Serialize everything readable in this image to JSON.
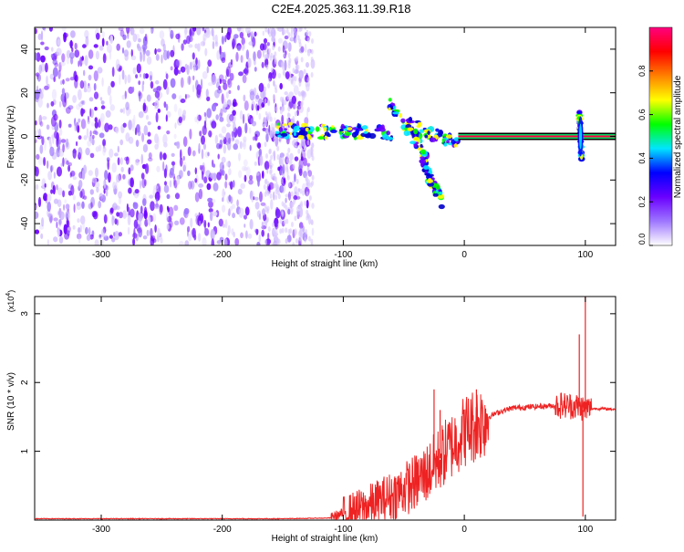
{
  "title": "C2E4.2025.363.11.39.R18",
  "chart_data": [
    {
      "type": "heatmap",
      "xlabel": "Height of straight line (km)",
      "ylabel": "Frequency (Hz)",
      "xlim": [
        -355,
        125
      ],
      "ylim": [
        -50,
        50
      ],
      "xticks": [
        -300,
        -200,
        -100,
        0,
        100
      ],
      "yticks": [
        -40,
        -20,
        0,
        20,
        40
      ],
      "colorbar": {
        "label": "Normalized spectral amplitude",
        "range": [
          0,
          1
        ],
        "ticks": [
          "0.0",
          "0.2",
          "0.4",
          "0.6",
          "0.8"
        ],
        "tick_values": [
          0,
          0.2,
          0.4,
          0.6,
          0.8
        ],
        "colors": [
          "#ffffff",
          "#9e76ff",
          "#6a00ff",
          "#0000ff",
          "#00e5ff",
          "#00ff00",
          "#ffff00",
          "#ff8000",
          "#ff0000",
          "#ff0080"
        ]
      },
      "regions": {
        "noise_x": [
          -355,
          -125
        ],
        "trace_x": [
          -155,
          125
        ],
        "trace_y": 0
      },
      "features": [
        {
          "x": [
            -155,
            -110
          ],
          "y": [
            3,
            2
          ]
        },
        {
          "x": [
            -110,
            -60
          ],
          "y": [
            3,
            1
          ]
        },
        {
          "x": [
            -62,
            -30
          ],
          "y": [
            15,
            -10
          ]
        },
        {
          "x": [
            -35,
            -18
          ],
          "y": [
            -12,
            -30
          ]
        },
        {
          "x": [
            -50,
            -5
          ],
          "y": [
            6,
            -3
          ]
        },
        {
          "x": [
            -5,
            125
          ],
          "y": [
            0,
            0
          ]
        },
        {
          "x": [
            95,
            97
          ],
          "y": [
            10,
            -10
          ]
        }
      ]
    },
    {
      "type": "line",
      "xlabel": "Height of straight line (km)",
      "ylabel": "SNR (10 * v/v)",
      "scale_label": "(x10",
      "scale_exp": "4",
      "scale_close": ")",
      "xlim": [
        -355,
        125
      ],
      "ylim": [
        0,
        3.25
      ],
      "xticks": [
        -300,
        -200,
        -100,
        0,
        100
      ],
      "yticks": [
        1,
        2,
        3
      ],
      "color": "#ee2222",
      "points": [
        [
          -355,
          0.02
        ],
        [
          -300,
          0.02
        ],
        [
          -250,
          0.02
        ],
        [
          -200,
          0.02
        ],
        [
          -150,
          0.02
        ],
        [
          -110,
          0.03
        ],
        [
          -100,
          0.1
        ],
        [
          -90,
          0.15
        ],
        [
          -80,
          0.2
        ],
        [
          -70,
          0.28
        ],
        [
          -60,
          0.35
        ],
        [
          -50,
          0.45
        ],
        [
          -40,
          0.55
        ],
        [
          -30,
          0.7
        ],
        [
          -25,
          0.8
        ],
        [
          -20,
          0.9
        ],
        [
          -15,
          1.0
        ],
        [
          -10,
          1.1
        ],
        [
          -5,
          1.2
        ],
        [
          0,
          1.3
        ],
        [
          5,
          1.35
        ],
        [
          10,
          1.4
        ],
        [
          20,
          1.5
        ],
        [
          30,
          1.58
        ],
        [
          40,
          1.63
        ],
        [
          50,
          1.64
        ],
        [
          60,
          1.65
        ],
        [
          70,
          1.66
        ],
        [
          80,
          1.67
        ],
        [
          90,
          1.66
        ],
        [
          95,
          1.65
        ],
        [
          100,
          1.62
        ],
        [
          110,
          1.62
        ],
        [
          125,
          1.61
        ]
      ],
      "spikes": [
        {
          "x": -25,
          "y": 1.9
        },
        {
          "x": -20,
          "y": 1.6
        },
        {
          "x": 10,
          "y": 1.9
        },
        {
          "x": 80,
          "y": 1.85
        },
        {
          "x": 95,
          "y": 2.7
        },
        {
          "x": 100,
          "y": 3.25
        }
      ]
    }
  ]
}
